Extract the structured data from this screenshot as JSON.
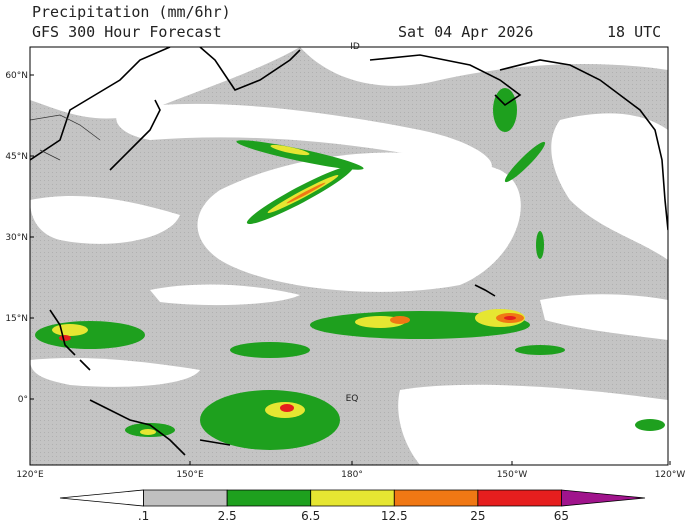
{
  "header": {
    "title": "Precipitation (mm/6hr)",
    "subtitle": "GFS 300 Hour Forecast",
    "date": "Sat 04 Apr 2026",
    "time": "18 UTC"
  },
  "map": {
    "lat_labels": [
      "60°N",
      "45°N",
      "30°N",
      "15°N",
      "0°"
    ],
    "lon_labels": [
      "120°E",
      "150°E",
      "180°",
      "150°W",
      "120°W"
    ],
    "markers": [
      "ID",
      "EQ"
    ]
  },
  "colorbar": {
    "labels": [
      ".1",
      "2.5",
      "6.5",
      "12.5",
      "25",
      "65"
    ],
    "colors": [
      "#ffffff",
      "#c0c0c0",
      "#1ea01e",
      "#e6e632",
      "#f07814",
      "#e61e1e",
      "#a0148c"
    ]
  }
}
